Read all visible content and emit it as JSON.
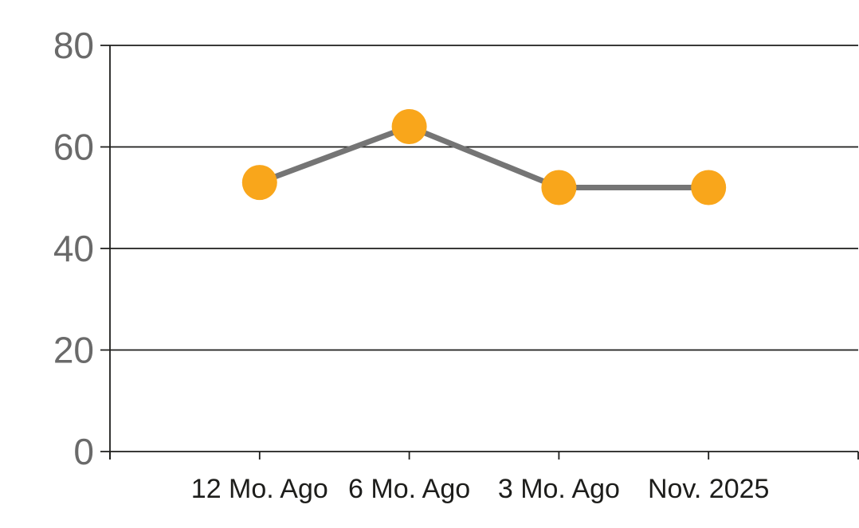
{
  "chart_data": {
    "type": "line",
    "categories": [
      "12 Mo. Ago",
      "6 Mo. Ago",
      "3 Mo. Ago",
      "Nov. 2025"
    ],
    "values": [
      53,
      64,
      52,
      52
    ],
    "title": "",
    "xlabel": "",
    "ylabel": "",
    "ylim": [
      0,
      80
    ],
    "y_ticks": [
      0,
      20,
      40,
      60,
      80
    ],
    "grid": true,
    "legend": false,
    "colors": {
      "marker": "#F9A61B",
      "line": "#757575",
      "grid": "#1d1d1b",
      "axis": "#1d1d1b",
      "y_tick_label": "#6a6a6a",
      "x_tick_label": "#1d1d1b",
      "background": "#ffffff"
    },
    "style": {
      "marker_radius": 22,
      "line_width": 7,
      "grid_width": 1.8,
      "y_label_font_px": 46,
      "x_label_font_px": 34
    }
  }
}
